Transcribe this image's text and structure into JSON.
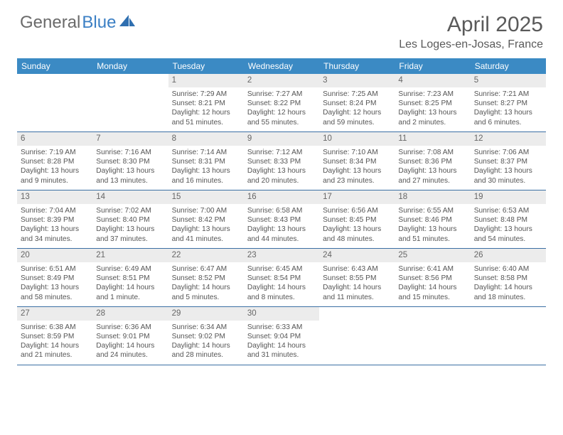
{
  "brand": {
    "part1": "General",
    "part2": "Blue"
  },
  "title": "April 2025",
  "location": "Les Loges-en-Josas, France",
  "colors": {
    "header_bg": "#3b8ac4",
    "row_border": "#3b6fa4",
    "daynum_bg": "#ececec",
    "text": "#555555",
    "title_text": "#5a5a5a"
  },
  "days_of_week": [
    "Sunday",
    "Monday",
    "Tuesday",
    "Wednesday",
    "Thursday",
    "Friday",
    "Saturday"
  ],
  "weeks": [
    [
      null,
      null,
      {
        "n": "1",
        "sr": "Sunrise: 7:29 AM",
        "ss": "Sunset: 8:21 PM",
        "dl": "Daylight: 12 hours and 51 minutes."
      },
      {
        "n": "2",
        "sr": "Sunrise: 7:27 AM",
        "ss": "Sunset: 8:22 PM",
        "dl": "Daylight: 12 hours and 55 minutes."
      },
      {
        "n": "3",
        "sr": "Sunrise: 7:25 AM",
        "ss": "Sunset: 8:24 PM",
        "dl": "Daylight: 12 hours and 59 minutes."
      },
      {
        "n": "4",
        "sr": "Sunrise: 7:23 AM",
        "ss": "Sunset: 8:25 PM",
        "dl": "Daylight: 13 hours and 2 minutes."
      },
      {
        "n": "5",
        "sr": "Sunrise: 7:21 AM",
        "ss": "Sunset: 8:27 PM",
        "dl": "Daylight: 13 hours and 6 minutes."
      }
    ],
    [
      {
        "n": "6",
        "sr": "Sunrise: 7:19 AM",
        "ss": "Sunset: 8:28 PM",
        "dl": "Daylight: 13 hours and 9 minutes."
      },
      {
        "n": "7",
        "sr": "Sunrise: 7:16 AM",
        "ss": "Sunset: 8:30 PM",
        "dl": "Daylight: 13 hours and 13 minutes."
      },
      {
        "n": "8",
        "sr": "Sunrise: 7:14 AM",
        "ss": "Sunset: 8:31 PM",
        "dl": "Daylight: 13 hours and 16 minutes."
      },
      {
        "n": "9",
        "sr": "Sunrise: 7:12 AM",
        "ss": "Sunset: 8:33 PM",
        "dl": "Daylight: 13 hours and 20 minutes."
      },
      {
        "n": "10",
        "sr": "Sunrise: 7:10 AM",
        "ss": "Sunset: 8:34 PM",
        "dl": "Daylight: 13 hours and 23 minutes."
      },
      {
        "n": "11",
        "sr": "Sunrise: 7:08 AM",
        "ss": "Sunset: 8:36 PM",
        "dl": "Daylight: 13 hours and 27 minutes."
      },
      {
        "n": "12",
        "sr": "Sunrise: 7:06 AM",
        "ss": "Sunset: 8:37 PM",
        "dl": "Daylight: 13 hours and 30 minutes."
      }
    ],
    [
      {
        "n": "13",
        "sr": "Sunrise: 7:04 AM",
        "ss": "Sunset: 8:39 PM",
        "dl": "Daylight: 13 hours and 34 minutes."
      },
      {
        "n": "14",
        "sr": "Sunrise: 7:02 AM",
        "ss": "Sunset: 8:40 PM",
        "dl": "Daylight: 13 hours and 37 minutes."
      },
      {
        "n": "15",
        "sr": "Sunrise: 7:00 AM",
        "ss": "Sunset: 8:42 PM",
        "dl": "Daylight: 13 hours and 41 minutes."
      },
      {
        "n": "16",
        "sr": "Sunrise: 6:58 AM",
        "ss": "Sunset: 8:43 PM",
        "dl": "Daylight: 13 hours and 44 minutes."
      },
      {
        "n": "17",
        "sr": "Sunrise: 6:56 AM",
        "ss": "Sunset: 8:45 PM",
        "dl": "Daylight: 13 hours and 48 minutes."
      },
      {
        "n": "18",
        "sr": "Sunrise: 6:55 AM",
        "ss": "Sunset: 8:46 PM",
        "dl": "Daylight: 13 hours and 51 minutes."
      },
      {
        "n": "19",
        "sr": "Sunrise: 6:53 AM",
        "ss": "Sunset: 8:48 PM",
        "dl": "Daylight: 13 hours and 54 minutes."
      }
    ],
    [
      {
        "n": "20",
        "sr": "Sunrise: 6:51 AM",
        "ss": "Sunset: 8:49 PM",
        "dl": "Daylight: 13 hours and 58 minutes."
      },
      {
        "n": "21",
        "sr": "Sunrise: 6:49 AM",
        "ss": "Sunset: 8:51 PM",
        "dl": "Daylight: 14 hours and 1 minute."
      },
      {
        "n": "22",
        "sr": "Sunrise: 6:47 AM",
        "ss": "Sunset: 8:52 PM",
        "dl": "Daylight: 14 hours and 5 minutes."
      },
      {
        "n": "23",
        "sr": "Sunrise: 6:45 AM",
        "ss": "Sunset: 8:54 PM",
        "dl": "Daylight: 14 hours and 8 minutes."
      },
      {
        "n": "24",
        "sr": "Sunrise: 6:43 AM",
        "ss": "Sunset: 8:55 PM",
        "dl": "Daylight: 14 hours and 11 minutes."
      },
      {
        "n": "25",
        "sr": "Sunrise: 6:41 AM",
        "ss": "Sunset: 8:56 PM",
        "dl": "Daylight: 14 hours and 15 minutes."
      },
      {
        "n": "26",
        "sr": "Sunrise: 6:40 AM",
        "ss": "Sunset: 8:58 PM",
        "dl": "Daylight: 14 hours and 18 minutes."
      }
    ],
    [
      {
        "n": "27",
        "sr": "Sunrise: 6:38 AM",
        "ss": "Sunset: 8:59 PM",
        "dl": "Daylight: 14 hours and 21 minutes."
      },
      {
        "n": "28",
        "sr": "Sunrise: 6:36 AM",
        "ss": "Sunset: 9:01 PM",
        "dl": "Daylight: 14 hours and 24 minutes."
      },
      {
        "n": "29",
        "sr": "Sunrise: 6:34 AM",
        "ss": "Sunset: 9:02 PM",
        "dl": "Daylight: 14 hours and 28 minutes."
      },
      {
        "n": "30",
        "sr": "Sunrise: 6:33 AM",
        "ss": "Sunset: 9:04 PM",
        "dl": "Daylight: 14 hours and 31 minutes."
      },
      null,
      null,
      null
    ]
  ]
}
